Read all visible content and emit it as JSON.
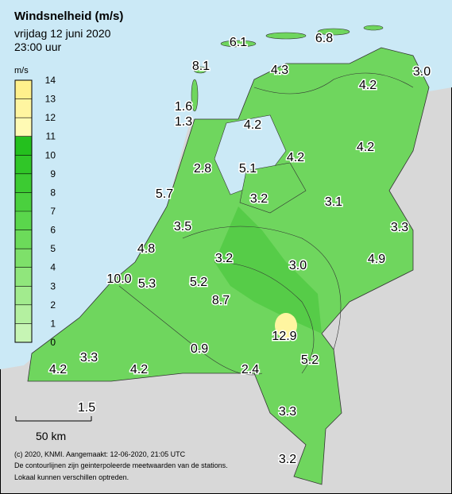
{
  "header": {
    "title": "Windsnelheid (m/s)",
    "date": "vrijdag 12 juni 2020",
    "time": "23:00 uur"
  },
  "legend": {
    "unit": "m/s",
    "ticks": [
      0,
      1,
      2,
      3,
      4,
      5,
      6,
      7,
      8,
      9,
      10,
      11,
      12,
      13,
      14
    ],
    "band_colors": [
      "#c6f5b4",
      "#b4f0a0",
      "#a2eb8e",
      "#90e67c",
      "#7ee06a",
      "#6cdb5a",
      "#5ad64c",
      "#4ad03e",
      "#3ccb32",
      "#30c628",
      "#24c01e",
      "#fffab4",
      "#fff5a0",
      "#fff08c"
    ]
  },
  "stations": [
    "6.1",
    "6.8",
    "8.1",
    "4.3",
    "4.2",
    "3.0",
    "1.6",
    "1.3",
    "4.2",
    "4.2",
    "4.2",
    "2.8",
    "5.1",
    "5.7",
    "3.2",
    "3.1",
    "3.5",
    "3.3",
    "4.8",
    "3.2",
    "3.0",
    "4.9",
    "10.0",
    "5.3",
    "5.2",
    "8.7",
    "12.9",
    "0.9",
    "3.3",
    "5.2",
    "4.2",
    "4.2",
    "2.4",
    "1.5",
    "3.3",
    "3.2"
  ],
  "scale": {
    "label": "50 km"
  },
  "footer": [
    "(c) 2020, KNMI. Aangemaakt: 12-06-2020, 21:05 UTC",
    "De contourlijnen zijn geinterpoleerde meetwaarden van de stations.",
    "Lokaal kunnen verschillen optreden."
  ]
}
